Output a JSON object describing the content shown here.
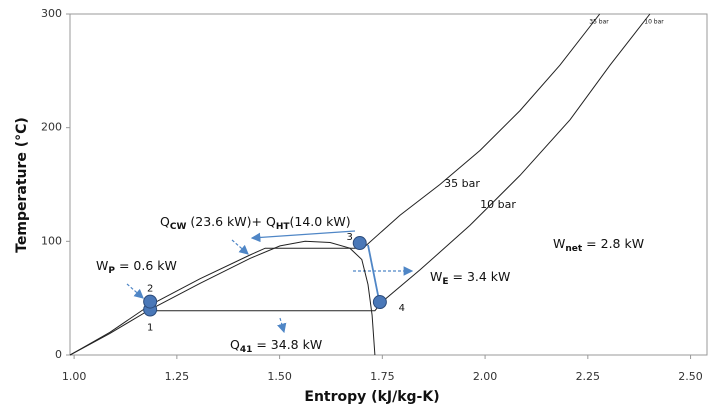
{
  "chart_data": {
    "type": "line",
    "xlabel": "Entropy (kJ/kg-K)",
    "ylabel": "Temperature (°C)",
    "xlim": [
      0.99,
      2.54
    ],
    "ylim": [
      0,
      300
    ],
    "xticks": [
      {
        "value": 1,
        "label": "1.00"
      },
      1.25,
      {
        "value": 1.5,
        "label": "1.50"
      },
      1.75,
      {
        "value": 2,
        "label": "2.00"
      },
      2.25,
      {
        "value": 2.5,
        "label": "2.50"
      }
    ],
    "yticks": [
      0,
      100,
      200,
      300
    ],
    "line_color": "#222222",
    "series": [
      {
        "x": [
          0.99,
          1.087,
          1.185,
          1.306,
          1.428,
          1.501,
          1.562,
          1.623,
          1.671,
          1.7,
          1.715,
          1.725,
          1.732
        ],
        "values": [
          0,
          19,
          40,
          63,
          85,
          96,
          100,
          99,
          94,
          84,
          62,
          35,
          0
        ]
      },
      {
        "name": "35 bar",
        "x": [
          0.99,
          1.087,
          1.185,
          1.306,
          1.428,
          1.465,
          1.703,
          1.793,
          1.89,
          1.988,
          2.085,
          2.182,
          2.279
        ],
        "values": [
          0,
          20,
          44,
          67,
          88,
          94,
          94,
          123,
          150,
          180,
          215,
          255,
          300
        ]
      },
      {
        "name": "10 bar",
        "x": [
          1.185,
          1.732,
          1.75,
          1.842,
          1.963,
          2.085,
          2.207,
          2.304,
          2.401
        ],
        "values": [
          39,
          39,
          47,
          75,
          114,
          158,
          207,
          255,
          300
        ]
      }
    ],
    "points": {
      "labels": [
        "1",
        "2",
        "3",
        "4"
      ],
      "x": [
        1.185,
        1.185,
        1.695,
        1.744
      ],
      "values": [
        40,
        47,
        98.5,
        46.6
      ],
      "color": "#4a78b8"
    },
    "annotations": [
      {
        "parts": [
          {
            "text": "Q"
          },
          {
            "text": "CW",
            "sub": true
          },
          {
            "text": " (23.6 kW)+ Q"
          },
          {
            "text": "HT",
            "sub": true
          },
          {
            "text": "(14.0 kW)"
          }
        ]
      },
      {
        "parts": [
          {
            "text": "W"
          },
          {
            "text": "P",
            "sub": true
          },
          {
            "text": " = 0.6 kW"
          }
        ]
      },
      {
        "parts": [
          {
            "text": "W"
          },
          {
            "text": "E",
            "sub": true
          },
          {
            "text": " = 3.4 kW"
          }
        ]
      },
      {
        "parts": [
          {
            "text": "W"
          },
          {
            "text": "net",
            "sub": true
          },
          {
            "text": " = 2.8 kW"
          }
        ]
      },
      {
        "parts": [
          {
            "text": "Q"
          },
          {
            "text": "41",
            "sub": true
          },
          {
            "text": " = 34.8 kW"
          }
        ]
      }
    ]
  }
}
